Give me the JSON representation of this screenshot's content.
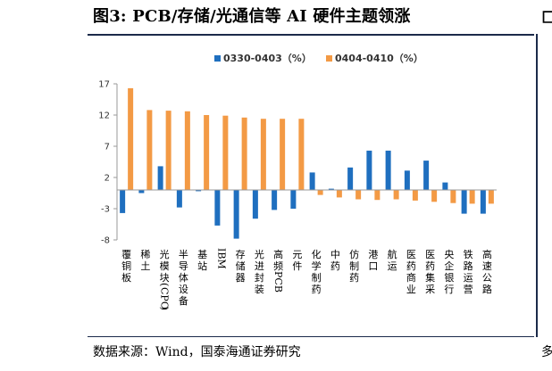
{
  "figure": {
    "title": "图3:  PCB/存储/光通信等 AI 硬件主题领涨",
    "source": "数据来源：Wind，国泰海通证券研究",
    "edge_glyph_top": "匚",
    "edge_glyph_bottom": "多"
  },
  "chart_data": {
    "type": "bar",
    "title": "图3:  PCB/存储/光通信等 AI 硬件主题领涨",
    "xlabel": "",
    "ylabel": "",
    "ylim": [
      -8,
      17
    ],
    "yticks": [
      17,
      12,
      7,
      2,
      -3,
      -8
    ],
    "grid": false,
    "legend_position": "top-center",
    "categories": [
      "覆铜板",
      "稀土",
      "光模块(CPO)",
      "半导体设备",
      "基站",
      "IBM",
      "存储器",
      "光进封装",
      "高频PCB",
      "元件",
      "化学制药",
      "中药",
      "仿制药",
      "港口",
      "航运",
      "医药商业",
      "医药集采",
      "央企银行",
      "铁路运营",
      "高速公路"
    ],
    "series": [
      {
        "name": "0330-0403（%）",
        "color": "#1f6fbf",
        "values": [
          -3.7,
          -0.5,
          3.8,
          -2.8,
          -0.2,
          -5.7,
          -7.8,
          -4.6,
          -3.2,
          -3.0,
          2.8,
          0.2,
          3.6,
          6.3,
          6.3,
          3.1,
          4.7,
          1.2,
          -3.8,
          -3.8
        ]
      },
      {
        "name": "0404-0410（%）",
        "color": "#f39a45",
        "values": [
          16.3,
          12.8,
          12.7,
          12.6,
          12.0,
          11.9,
          11.6,
          11.4,
          11.4,
          11.4,
          -0.8,
          -1.2,
          -1.5,
          -1.6,
          -1.5,
          -1.7,
          -1.9,
          -2.1,
          -2.2,
          -2.2
        ]
      }
    ]
  }
}
